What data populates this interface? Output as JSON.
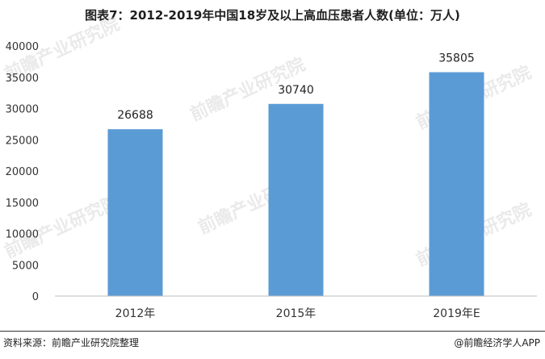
{
  "chart_data": {
    "type": "bar",
    "title": "图表7：2012-2019年中国18岁及以上高血压患者人数(单位：万人)",
    "categories": [
      "2012年",
      "2015年",
      "2019年E"
    ],
    "values": [
      26688,
      30740,
      35805
    ],
    "ylim": [
      0,
      40000
    ],
    "yticks": [
      0,
      5000,
      10000,
      15000,
      20000,
      25000,
      30000,
      35000,
      40000
    ],
    "grid": false,
    "bar_color": "#5b9bd5",
    "axis_color": "#bfbfbf"
  },
  "footer": {
    "source": "资料来源：前瞻产业研究院整理",
    "brand": "@前瞻经济学人APP"
  },
  "watermark": {
    "text": "前瞻产业研究院"
  }
}
